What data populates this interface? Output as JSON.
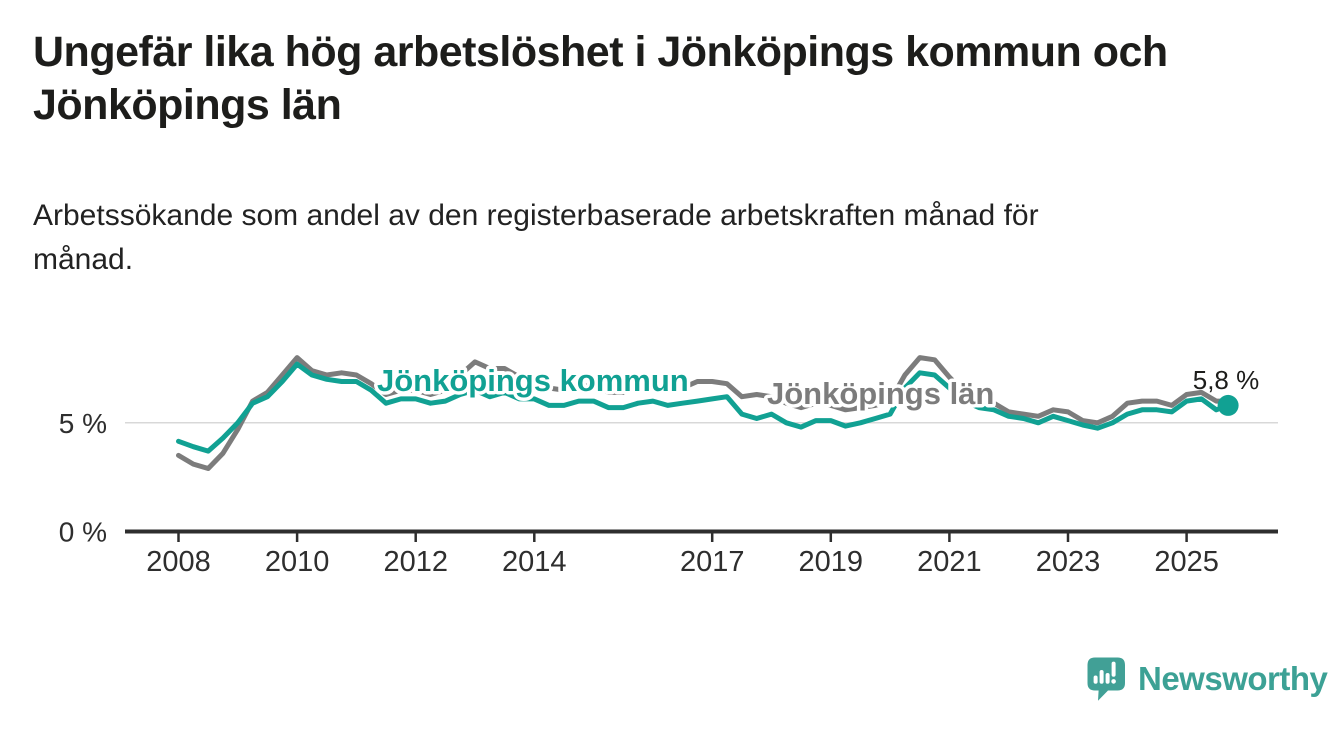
{
  "header": {
    "title_lines": [
      "Ungefär lika hög arbetslöshet i Jönköpings kommun och",
      "Jönköpings län"
    ],
    "subtitle_lines": [
      "Arbetssökande som andel av den registerbaserade arbetskraften månad för",
      "månad."
    ]
  },
  "chart_data": {
    "type": "line",
    "unit": "%",
    "grid": "single horizontal gridline at 5 %",
    "legend_position": "inline labels on lines",
    "ylim": [
      0,
      8.6
    ],
    "xlim": [
      2007.1,
      2026.6
    ],
    "x": [
      2008,
      2008.25,
      2008.5,
      2008.75,
      2009,
      2009.25,
      2009.5,
      2009.75,
      2010,
      2010.25,
      2010.5,
      2010.75,
      2011,
      2011.25,
      2011.5,
      2011.75,
      2012,
      2012.25,
      2012.5,
      2012.75,
      2013,
      2013.25,
      2013.5,
      2013.75,
      2014,
      2014.25,
      2014.5,
      2014.75,
      2015,
      2015.25,
      2015.5,
      2015.75,
      2016,
      2016.25,
      2016.5,
      2016.75,
      2017,
      2017.25,
      2017.5,
      2017.75,
      2018,
      2018.25,
      2018.5,
      2018.75,
      2019,
      2019.25,
      2019.5,
      2019.75,
      2020,
      2020.25,
      2020.5,
      2020.75,
      2021,
      2021.25,
      2021.5,
      2021.75,
      2022,
      2022.25,
      2022.5,
      2022.75,
      2023,
      2023.25,
      2023.5,
      2023.75,
      2024,
      2024.25,
      2024.5,
      2024.75,
      2025,
      2025.25,
      2025.5,
      2025.7
    ],
    "series": [
      {
        "name": "Jönköpings kommun",
        "color": "#11a193",
        "values": [
          4.15,
          3.9,
          3.7,
          4.3,
          5.0,
          5.9,
          6.2,
          6.9,
          7.7,
          7.2,
          7.0,
          6.9,
          6.9,
          6.5,
          5.9,
          6.1,
          6.1,
          5.9,
          6.0,
          6.3,
          6.5,
          6.2,
          6.4,
          6.1,
          6.1,
          5.8,
          5.8,
          6.0,
          6.0,
          5.7,
          5.7,
          5.9,
          6.0,
          5.8,
          5.9,
          6.0,
          6.1,
          6.2,
          5.4,
          5.2,
          5.4,
          5.0,
          4.8,
          5.1,
          5.1,
          4.85,
          5.0,
          5.2,
          5.4,
          6.6,
          7.3,
          7.2,
          6.6,
          6.0,
          5.7,
          5.6,
          5.3,
          5.2,
          5.0,
          5.3,
          5.1,
          4.9,
          4.75,
          5.0,
          5.4,
          5.6,
          5.6,
          5.5,
          6.0,
          6.1,
          5.6,
          5.8
        ]
      },
      {
        "name": "Jönköpings län",
        "color": "#7c7c7c",
        "values": [
          3.5,
          3.1,
          2.9,
          3.6,
          4.7,
          6.0,
          6.4,
          7.2,
          8.0,
          7.4,
          7.2,
          7.3,
          7.2,
          6.8,
          6.3,
          6.5,
          6.5,
          6.3,
          6.5,
          7.2,
          7.8,
          7.5,
          7.5,
          7.1,
          7.0,
          6.6,
          6.5,
          6.7,
          6.7,
          6.4,
          6.4,
          6.6,
          6.7,
          6.5,
          6.6,
          6.9,
          6.9,
          6.8,
          6.2,
          6.3,
          6.2,
          5.9,
          5.7,
          5.9,
          5.8,
          5.6,
          5.7,
          5.8,
          6.0,
          7.2,
          8.0,
          7.9,
          7.1,
          6.4,
          6.0,
          5.9,
          5.5,
          5.4,
          5.3,
          5.6,
          5.5,
          5.1,
          5.0,
          5.3,
          5.9,
          6.0,
          6.0,
          5.8,
          6.3,
          6.4,
          6.0,
          6.0
        ]
      }
    ],
    "x_ticks": [
      {
        "x": 2008,
        "label": "2008"
      },
      {
        "x": 2010,
        "label": "2010"
      },
      {
        "x": 2012,
        "label": "2012"
      },
      {
        "x": 2014,
        "label": "2014"
      },
      {
        "x": 2017,
        "label": "2017"
      },
      {
        "x": 2019,
        "label": "2019"
      },
      {
        "x": 2021,
        "label": "2021"
      },
      {
        "x": 2023,
        "label": "2023"
      },
      {
        "x": 2025,
        "label": "2025"
      }
    ],
    "y_ticks": [
      {
        "y": 0,
        "label": "0 %"
      },
      {
        "y": 5,
        "label": "5 %"
      }
    ],
    "annotation": {
      "text": "5,8 %",
      "x": 2025.7,
      "y": 5.8
    },
    "end_marker": {
      "series": "Jönköpings kommun",
      "x": 2025.7,
      "y": 5.8,
      "shape": "dot",
      "color": "#11a193"
    },
    "colors": {
      "gridline": "#d8d8d8",
      "axis": "#2e2e2e",
      "text": "#1d1d1b"
    }
  },
  "footer": {
    "brand": "Newsworthy",
    "logo_icon": "bar-chart-speech-bubble-icon",
    "brand_color": "#3ca195"
  }
}
